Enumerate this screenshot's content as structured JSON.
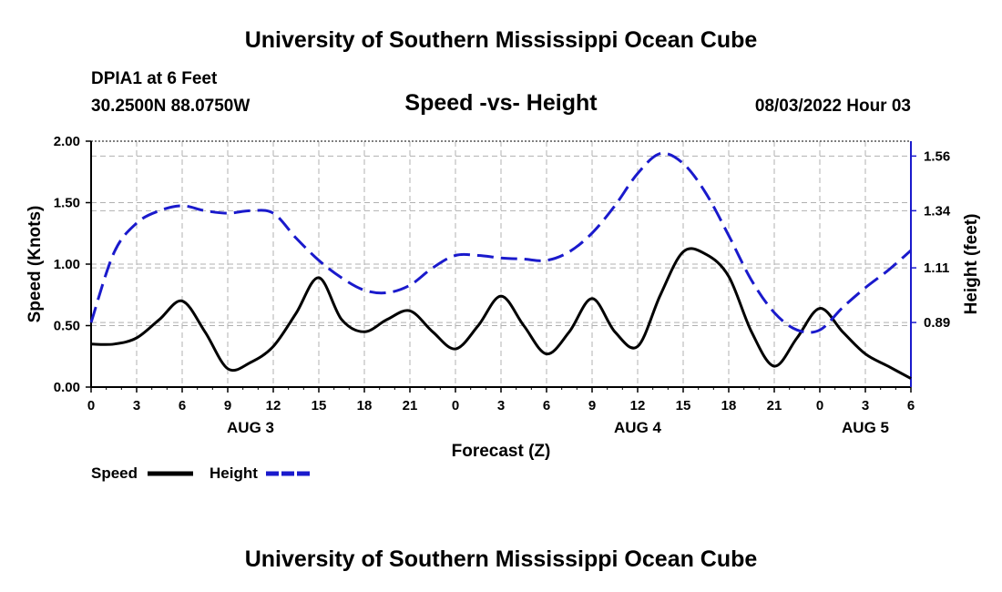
{
  "header": {
    "title": "University of Southern Mississippi Ocean Cube",
    "station": "DPIA1 at 6 Feet",
    "coords": "30.2500N  88.0750W",
    "subtitle": "Speed -vs- Height",
    "datetime": "08/03/2022 Hour 03"
  },
  "footer": {
    "title": "University of Southern Mississippi Ocean Cube"
  },
  "legend": {
    "speed_label": "Speed",
    "height_label": "Height",
    "speed_color": "#000000",
    "height_color": "#1a1acc"
  },
  "chart_data": {
    "type": "line",
    "title": "Speed -vs- Height",
    "xlabel": "Forecast (Z)",
    "ylabel": "Speed (Knots)",
    "y2label": "Height (feet)",
    "xlim": [
      0,
      54
    ],
    "ylim": [
      0,
      2.0
    ],
    "y2lim": [
      0.63,
      1.62
    ],
    "x_ticks": [
      0,
      3,
      6,
      9,
      12,
      15,
      18,
      21,
      24,
      27,
      30,
      33,
      36,
      39,
      42,
      45,
      48,
      51,
      54
    ],
    "x_tick_labels": [
      "0",
      "3",
      "6",
      "9",
      "12",
      "15",
      "18",
      "21",
      "0",
      "3",
      "6",
      "9",
      "12",
      "15",
      "18",
      "21",
      "0",
      "3",
      "6"
    ],
    "y_ticks": [
      0.0,
      0.5,
      1.0,
      1.5,
      2.0
    ],
    "y_tick_labels": [
      "0.00",
      "0.50",
      "1.00",
      "1.50",
      "2.00"
    ],
    "y2_ticks": [
      0.89,
      1.11,
      1.34,
      1.56
    ],
    "y2_tick_labels": [
      "0.89",
      "1.11",
      "1.34",
      "1.56"
    ],
    "date_labels": [
      {
        "x": 10.5,
        "label": "AUG 3"
      },
      {
        "x": 36,
        "label": "AUG 4"
      },
      {
        "x": 51,
        "label": "AUG 5"
      }
    ],
    "grid": true,
    "series": [
      {
        "name": "Speed",
        "axis": "left",
        "style": "solid",
        "color": "#000000",
        "x": [
          0,
          1.5,
          3,
          4.5,
          6,
          7.5,
          9,
          10.5,
          12,
          13.5,
          15,
          16.5,
          18,
          19.5,
          21,
          22.5,
          24,
          25.5,
          27,
          28.5,
          30,
          31.5,
          33,
          34.5,
          36,
          37.5,
          39,
          40.5,
          42,
          43.5,
          45,
          46.5,
          48,
          49.5,
          51,
          52.5,
          54
        ],
        "values": [
          0.35,
          0.35,
          0.4,
          0.55,
          0.7,
          0.45,
          0.15,
          0.2,
          0.33,
          0.6,
          0.89,
          0.55,
          0.45,
          0.55,
          0.62,
          0.45,
          0.31,
          0.5,
          0.74,
          0.5,
          0.27,
          0.45,
          0.72,
          0.45,
          0.33,
          0.75,
          1.1,
          1.08,
          0.9,
          0.45,
          0.17,
          0.4,
          0.64,
          0.45,
          0.27,
          0.17,
          0.07
        ]
      },
      {
        "name": "Height",
        "axis": "right",
        "style": "dashed",
        "color": "#1a1acc",
        "x": [
          0,
          1.5,
          3,
          4.5,
          6,
          7.5,
          9,
          10.5,
          12,
          13.5,
          15,
          16.5,
          18,
          19.5,
          21,
          22.5,
          24,
          25.5,
          27,
          28.5,
          30,
          31.5,
          33,
          34.5,
          36,
          37.5,
          39,
          40.5,
          42,
          43.5,
          45,
          46.5,
          48,
          49.5,
          51,
          52.5,
          54
        ],
        "values": [
          0.89,
          1.17,
          1.29,
          1.34,
          1.36,
          1.34,
          1.33,
          1.34,
          1.33,
          1.23,
          1.14,
          1.07,
          1.02,
          1.01,
          1.04,
          1.11,
          1.16,
          1.16,
          1.15,
          1.145,
          1.14,
          1.175,
          1.25,
          1.36,
          1.49,
          1.57,
          1.53,
          1.41,
          1.24,
          1.06,
          0.93,
          0.86,
          0.86,
          0.95,
          1.03,
          1.1,
          1.18
        ]
      }
    ]
  }
}
